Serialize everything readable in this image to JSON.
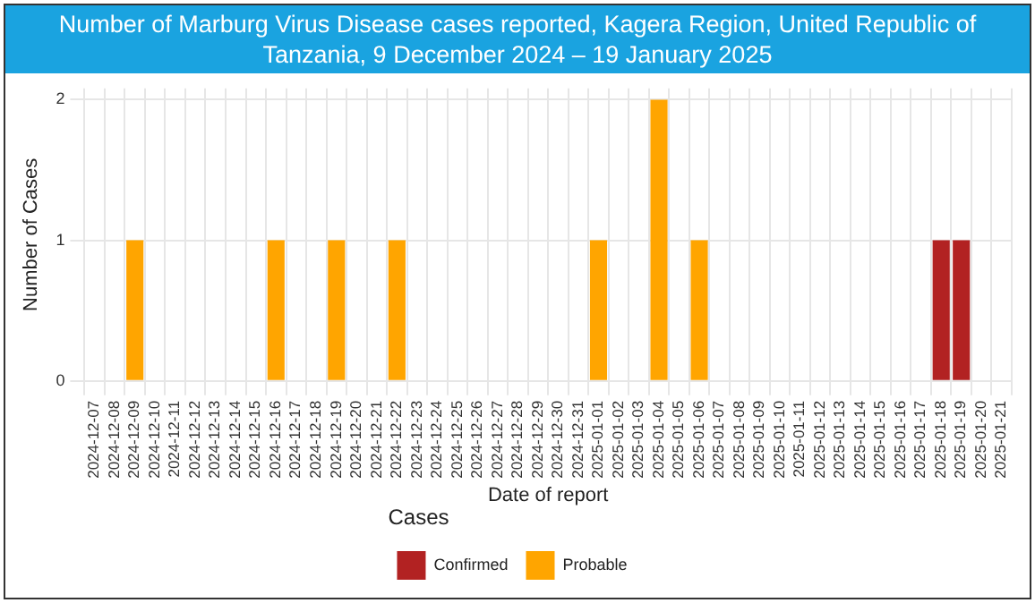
{
  "chart_data": {
    "type": "bar",
    "title": "Number of Marburg Virus Disease cases reported, Kagera Region, United Republic of Tanzania, 9 December 2024 – 19 January 2025",
    "xlabel": "Date of report",
    "ylabel": "Number of Cases",
    "legend_title": "Cases",
    "categories": [
      "2024-12-07",
      "2024-12-08",
      "2024-12-09",
      "2024-12-10",
      "2024-12-11",
      "2024-12-12",
      "2024-12-13",
      "2024-12-14",
      "2024-12-15",
      "2024-12-16",
      "2024-12-17",
      "2024-12-18",
      "2024-12-19",
      "2024-12-20",
      "2024-12-21",
      "2024-12-22",
      "2024-12-23",
      "2024-12-24",
      "2024-12-25",
      "2024-12-26",
      "2024-12-27",
      "2024-12-28",
      "2024-12-29",
      "2024-12-30",
      "2024-12-31",
      "2025-01-01",
      "2025-01-02",
      "2025-01-03",
      "2025-01-04",
      "2025-01-05",
      "2025-01-06",
      "2025-01-07",
      "2025-01-08",
      "2025-01-09",
      "2025-01-10",
      "2025-01-11",
      "2025-01-12",
      "2025-01-13",
      "2025-01-14",
      "2025-01-15",
      "2025-01-16",
      "2025-01-17",
      "2025-01-18",
      "2025-01-19",
      "2025-01-20",
      "2025-01-21"
    ],
    "series": [
      {
        "name": "Confirmed",
        "color": "#b22222",
        "values": [
          0,
          0,
          0,
          0,
          0,
          0,
          0,
          0,
          0,
          0,
          0,
          0,
          0,
          0,
          0,
          0,
          0,
          0,
          0,
          0,
          0,
          0,
          0,
          0,
          0,
          0,
          0,
          0,
          0,
          0,
          0,
          0,
          0,
          0,
          0,
          0,
          0,
          0,
          0,
          0,
          0,
          0,
          1,
          1,
          0,
          0
        ]
      },
      {
        "name": "Probable",
        "color": "#ffa500",
        "values": [
          0,
          0,
          1,
          0,
          0,
          0,
          0,
          0,
          0,
          1,
          0,
          0,
          1,
          0,
          0,
          1,
          0,
          0,
          0,
          0,
          0,
          0,
          0,
          0,
          0,
          1,
          0,
          0,
          2,
          0,
          1,
          0,
          0,
          0,
          0,
          0,
          0,
          0,
          0,
          0,
          0,
          0,
          0,
          0,
          0,
          0
        ]
      }
    ],
    "stacked": true,
    "ylim": [
      0,
      2.08
    ],
    "yticks": [
      0,
      1,
      2
    ],
    "grid": true,
    "legend": "bottom"
  }
}
